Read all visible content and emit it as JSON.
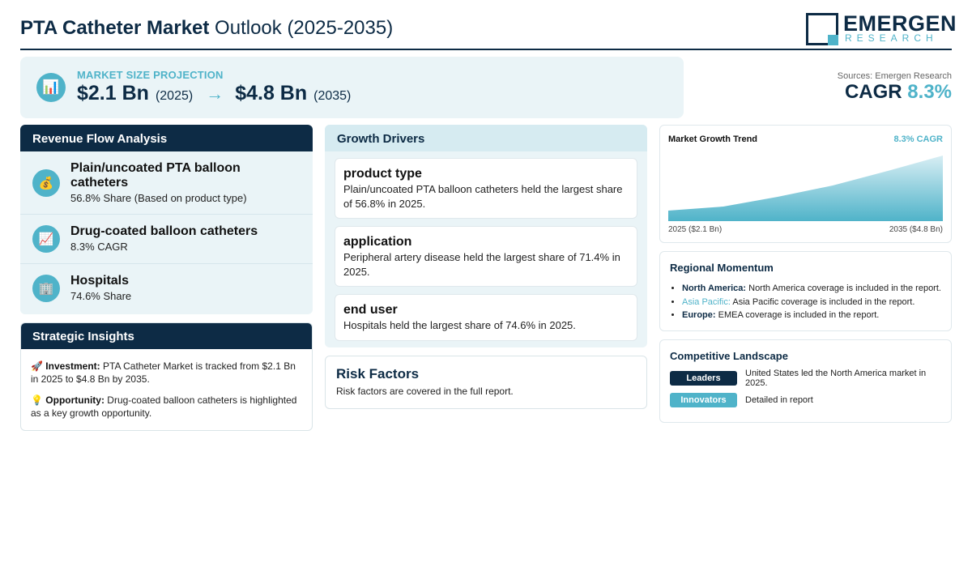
{
  "header": {
    "title_bold": "PTA Catheter Market",
    "title_rest": " Outlook (2025-2035)",
    "logo_top": "EMERGEN",
    "logo_bottom": "RESEARCH"
  },
  "projection": {
    "icon": "bar-chart-icon",
    "label": "MARKET SIZE PROJECTION",
    "start_value": "$2.1 Bn",
    "start_year": "(2025)",
    "arrow": "→",
    "end_value": "$4.8 Bn",
    "end_year": "(2035)"
  },
  "sources": "Sources: Emergen Research",
  "cagr": {
    "label": "CAGR",
    "value": "8.3%"
  },
  "revenue": {
    "title": "Revenue Flow Analysis",
    "items": [
      {
        "icon": "money-bag-icon",
        "glyph": "💰",
        "title": "Plain/uncoated PTA balloon catheters",
        "sub": "56.8% Share (Based on product type)"
      },
      {
        "icon": "chart-up-icon",
        "glyph": "📈",
        "title": "Drug-coated balloon catheters",
        "sub": "8.3% CAGR"
      },
      {
        "icon": "hospital-icon",
        "glyph": "🏢",
        "title": "Hospitals",
        "sub": "74.6% Share"
      }
    ]
  },
  "insights": {
    "title": "Strategic Insights",
    "items": [
      {
        "glyph": "🚀",
        "label": "Investment:",
        "text": "PTA Catheter Market is tracked from $2.1 Bn in 2025 to $4.8 Bn by 2035."
      },
      {
        "glyph": "💡",
        "label": "Opportunity:",
        "text": "Drug-coated balloon catheters is highlighted as a key growth opportunity."
      }
    ]
  },
  "drivers": {
    "title": "Growth Drivers",
    "cards": [
      {
        "title": "product type",
        "text": "Plain/uncoated PTA balloon catheters held the largest share of 56.8% in 2025."
      },
      {
        "title": "application",
        "text": "Peripheral artery disease held the largest share of 71.4% in 2025."
      },
      {
        "title": "end user",
        "text": "Hospitals held the largest share of 74.6% in 2025."
      }
    ]
  },
  "risk": {
    "title": "Risk Factors",
    "text": "Risk factors are covered in the full report."
  },
  "trend": {
    "title": "Market Growth Trend",
    "cagr_label": "8.3% CAGR",
    "start_label": "2025 ($2.1 Bn)",
    "end_label": "2035 ($4.8 Bn)",
    "colors": {
      "top": "#d8eef4",
      "bottom": "#4fb3c9"
    }
  },
  "regional": {
    "title": "Regional Momentum",
    "items": [
      {
        "name": "North America:",
        "text": " North America coverage is included in the report.",
        "accent": false
      },
      {
        "name": "Asia Pacific:",
        "text": " Asia Pacific coverage is included in the report.",
        "accent": true
      },
      {
        "name": "Europe:",
        "text": " EMEA coverage is included in the report.",
        "accent": false
      }
    ]
  },
  "competitive": {
    "title": "Competitive Landscape",
    "leaders_badge": "Leaders",
    "leaders_text": "United States led the North America market in 2025.",
    "innovators_badge": "Innovators",
    "innovators_text": "Detailed in report"
  },
  "colors": {
    "navy": "#0d2b45",
    "accent": "#4fb3c9",
    "panel": "#eaf4f7"
  }
}
